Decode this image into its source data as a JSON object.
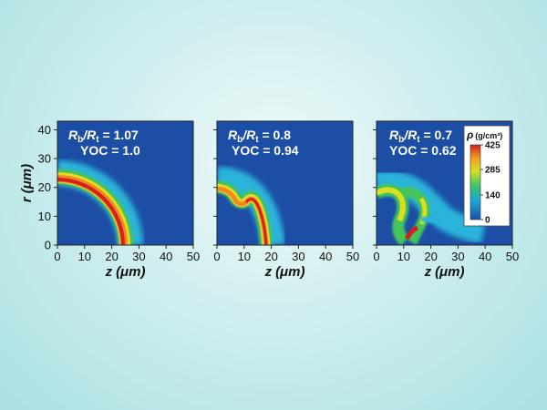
{
  "chart_data": {
    "type": "heatmap",
    "xlabel": {
      "var": "z",
      "unit": "(μm)"
    },
    "ylabel": {
      "var": "r",
      "unit": "(μm)"
    },
    "xlim": [
      0,
      50
    ],
    "ylim": [
      0,
      43
    ],
    "xticks": [
      0,
      10,
      20,
      30,
      40,
      50
    ],
    "yticks": [
      0,
      10,
      20,
      30,
      40
    ],
    "panels": [
      {
        "ratio_label": "1.07",
        "yoc_label": "YOC = 1.0"
      },
      {
        "ratio_label": "0.8",
        "yoc_label": "YOC = 0.94"
      },
      {
        "ratio_label": "0.7",
        "yoc_label": "YOC = 0.62"
      }
    ],
    "colorbar": {
      "title_var": "ρ",
      "title_unit": "(g/cm³)",
      "ticks": [
        0,
        140,
        285,
        425
      ],
      "range": [
        0,
        425
      ],
      "colors": [
        "#1a4fa8",
        "#1aa7d6",
        "#3cc56a",
        "#d8e020",
        "#f0a020",
        "#d02020"
      ]
    },
    "ratio_prefix_1": "R",
    "ratio_sub_1": "b",
    "ratio_slash": "/R",
    "ratio_sub_2": "t",
    "ratio_eq": " = "
  }
}
